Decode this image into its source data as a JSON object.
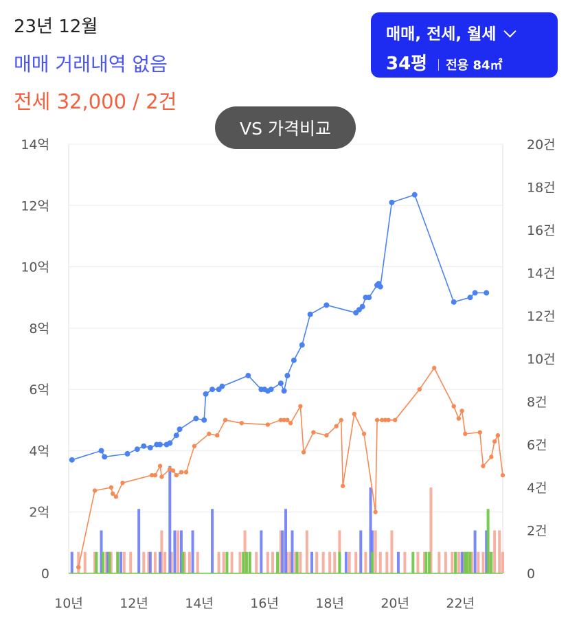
{
  "header": {
    "date": "23년 12월",
    "sale_status": "매매 거래내역 없음",
    "jeonse_summary": "전세 32,000 / 2건"
  },
  "filter": {
    "deal_types": "매매, 전세, 월세",
    "pyeong": "34평",
    "area": "전용 84㎡",
    "icon": "chevron-down-icon"
  },
  "compare_button": {
    "label": "VS 가격비교"
  },
  "chart_data": {
    "type": "line",
    "x_range": [
      2010,
      2023.3
    ],
    "x_ticks": [
      "10년",
      "12년",
      "14년",
      "16년",
      "18년",
      "20년",
      "22년"
    ],
    "y_left": {
      "range": [
        0,
        14
      ],
      "ticks": [
        "0",
        "2억",
        "4억",
        "6억",
        "8억",
        "10억",
        "12억",
        "14억"
      ]
    },
    "y_right": {
      "range": [
        0,
        20
      ],
      "ticks": [
        "0",
        "2건",
        "4건",
        "6건",
        "8건",
        "10건",
        "12건",
        "14건",
        "16건",
        "18건",
        "20건"
      ]
    },
    "grid": "horizontal",
    "colors": {
      "sale": "#4a82f0",
      "jeonse": "#f58a55",
      "sale_bar": "#6b7cf5",
      "jeonse_bar": "#f5a898",
      "monthly_bar": "#70c84a"
    },
    "series": [
      {
        "points": [
          [
            2010.1,
            3.7
          ],
          [
            2011.0,
            4.0
          ],
          [
            2011.1,
            3.8
          ],
          [
            2011.8,
            3.9
          ],
          [
            2012.1,
            4.05
          ],
          [
            2012.3,
            4.15
          ],
          [
            2012.5,
            4.1
          ],
          [
            2012.7,
            4.2
          ],
          [
            2012.8,
            4.2
          ],
          [
            2013.0,
            4.2
          ],
          [
            2013.1,
            4.25
          ],
          [
            2013.3,
            4.5
          ],
          [
            2013.4,
            4.7
          ],
          [
            2013.9,
            5.05
          ],
          [
            2014.15,
            5.0
          ],
          [
            2014.2,
            5.85
          ],
          [
            2014.4,
            6.0
          ],
          [
            2014.6,
            6.0
          ],
          [
            2014.7,
            6.1
          ],
          [
            2015.5,
            6.45
          ],
          [
            2015.9,
            6.0
          ],
          [
            2016.0,
            6.0
          ],
          [
            2016.1,
            5.95
          ],
          [
            2016.2,
            6.0
          ],
          [
            2016.5,
            6.2
          ],
          [
            2016.6,
            5.95
          ],
          [
            2016.7,
            6.45
          ],
          [
            2016.9,
            6.95
          ],
          [
            2017.15,
            7.45
          ],
          [
            2017.4,
            8.45
          ],
          [
            2017.9,
            8.75
          ],
          [
            2018.8,
            8.5
          ],
          [
            2018.9,
            8.6
          ],
          [
            2019.0,
            8.7
          ],
          [
            2019.1,
            9.0
          ],
          [
            2019.2,
            9.0
          ],
          [
            2019.45,
            9.4
          ],
          [
            2019.5,
            9.45
          ],
          [
            2019.55,
            9.35
          ],
          [
            2019.9,
            12.1
          ],
          [
            2020.6,
            12.35
          ],
          [
            2021.8,
            8.85
          ],
          [
            2022.3,
            9.0
          ],
          [
            2022.45,
            9.15
          ],
          [
            2022.8,
            9.15
          ]
        ]
      },
      {
        "points": [
          [
            2010.3,
            0.2
          ],
          [
            2010.8,
            2.7
          ],
          [
            2011.3,
            2.8
          ],
          [
            2011.35,
            2.6
          ],
          [
            2011.45,
            2.5
          ],
          [
            2011.65,
            2.95
          ],
          [
            2012.55,
            3.2
          ],
          [
            2012.65,
            3.2
          ],
          [
            2012.8,
            3.5
          ],
          [
            2012.85,
            3.15
          ],
          [
            2013.1,
            3.4
          ],
          [
            2013.2,
            3.35
          ],
          [
            2013.3,
            3.2
          ],
          [
            2013.45,
            3.3
          ],
          [
            2013.6,
            3.3
          ],
          [
            2013.85,
            4.15
          ],
          [
            2014.3,
            4.55
          ],
          [
            2014.55,
            4.5
          ],
          [
            2014.8,
            5.0
          ],
          [
            2015.3,
            4.9
          ],
          [
            2016.1,
            4.85
          ],
          [
            2016.5,
            5.0
          ],
          [
            2016.6,
            5.0
          ],
          [
            2016.7,
            5.0
          ],
          [
            2016.8,
            4.9
          ],
          [
            2017.1,
            5.45
          ],
          [
            2017.2,
            3.95
          ],
          [
            2017.5,
            4.6
          ],
          [
            2017.9,
            4.5
          ],
          [
            2018.2,
            4.8
          ],
          [
            2018.35,
            5.0
          ],
          [
            2018.4,
            2.85
          ],
          [
            2018.75,
            5.2
          ],
          [
            2019.05,
            4.55
          ],
          [
            2019.4,
            2.0
          ],
          [
            2019.45,
            5.0
          ],
          [
            2019.6,
            5.0
          ],
          [
            2019.7,
            5.0
          ],
          [
            2019.8,
            5.0
          ],
          [
            2020.0,
            5.0
          ],
          [
            2020.75,
            6.0
          ],
          [
            2021.2,
            6.7
          ],
          [
            2021.8,
            5.45
          ],
          [
            2021.95,
            5.05
          ],
          [
            2022.05,
            5.3
          ],
          [
            2022.15,
            4.55
          ],
          [
            2022.6,
            4.6
          ],
          [
            2022.7,
            3.5
          ],
          [
            2022.95,
            3.8
          ],
          [
            2023.05,
            4.3
          ],
          [
            2023.15,
            4.5
          ],
          [
            2023.3,
            3.2
          ]
        ]
      }
    ],
    "bars": {
      "sale": [
        [
          2010.1,
          1
        ],
        [
          2011.0,
          2
        ],
        [
          2011.2,
          1
        ],
        [
          2011.6,
          1
        ],
        [
          2012.15,
          3
        ],
        [
          2012.5,
          1
        ],
        [
          2012.8,
          1
        ],
        [
          2013.1,
          5
        ],
        [
          2013.25,
          2
        ],
        [
          2013.45,
          2
        ],
        [
          2013.8,
          2
        ],
        [
          2014.4,
          3
        ],
        [
          2015.9,
          2
        ],
        [
          2016.55,
          2
        ],
        [
          2016.65,
          3
        ],
        [
          2016.85,
          2
        ],
        [
          2017.45,
          1
        ],
        [
          2018.5,
          1
        ],
        [
          2018.95,
          2
        ],
        [
          2019.25,
          4
        ],
        [
          2019.3,
          2
        ],
        [
          2020.1,
          1
        ],
        [
          2022.05,
          1
        ],
        [
          2022.45,
          2
        ],
        [
          2022.8,
          2
        ]
      ],
      "jeonse": [
        [
          2010.3,
          1
        ],
        [
          2010.5,
          1
        ],
        [
          2010.8,
          1
        ],
        [
          2011.15,
          1
        ],
        [
          2011.3,
          1
        ],
        [
          2011.5,
          1
        ],
        [
          2011.7,
          1
        ],
        [
          2011.9,
          1
        ],
        [
          2012.3,
          1
        ],
        [
          2012.45,
          1
        ],
        [
          2012.65,
          1
        ],
        [
          2012.85,
          2
        ],
        [
          2012.95,
          1
        ],
        [
          2013.15,
          1
        ],
        [
          2013.35,
          2
        ],
        [
          2013.55,
          1
        ],
        [
          2013.7,
          1
        ],
        [
          2013.95,
          1
        ],
        [
          2014.6,
          1
        ],
        [
          2014.75,
          1
        ],
        [
          2015.0,
          1
        ],
        [
          2015.25,
          1
        ],
        [
          2015.4,
          2
        ],
        [
          2015.55,
          1
        ],
        [
          2015.75,
          1
        ],
        [
          2016.1,
          1
        ],
        [
          2016.25,
          1
        ],
        [
          2016.5,
          2
        ],
        [
          2016.7,
          1
        ],
        [
          2016.8,
          1
        ],
        [
          2016.95,
          1
        ],
        [
          2017.1,
          1
        ],
        [
          2017.3,
          2
        ],
        [
          2017.6,
          1
        ],
        [
          2017.8,
          1
        ],
        [
          2018.0,
          1
        ],
        [
          2018.15,
          1
        ],
        [
          2018.3,
          2
        ],
        [
          2018.6,
          1
        ],
        [
          2018.8,
          1
        ],
        [
          2019.1,
          1
        ],
        [
          2019.4,
          2
        ],
        [
          2019.55,
          1
        ],
        [
          2019.75,
          1
        ],
        [
          2019.9,
          2
        ],
        [
          2020.3,
          1
        ],
        [
          2020.7,
          1
        ],
        [
          2020.9,
          1
        ],
        [
          2021.1,
          4
        ],
        [
          2021.35,
          1
        ],
        [
          2021.55,
          1
        ],
        [
          2021.75,
          1
        ],
        [
          2021.95,
          1
        ],
        [
          2022.1,
          1
        ],
        [
          2022.25,
          1
        ],
        [
          2022.35,
          1
        ],
        [
          2022.55,
          1
        ],
        [
          2022.7,
          1
        ],
        [
          2022.9,
          1
        ],
        [
          2023.05,
          2
        ],
        [
          2023.2,
          2
        ],
        [
          2023.3,
          1
        ]
      ],
      "monthly": [
        [
          2010.85,
          1
        ],
        [
          2011.05,
          1
        ],
        [
          2011.25,
          1
        ],
        [
          2011.5,
          1
        ],
        [
          2013.5,
          1
        ],
        [
          2014.85,
          1
        ],
        [
          2015.35,
          1
        ],
        [
          2015.45,
          1
        ],
        [
          2015.55,
          1
        ],
        [
          2016.4,
          1
        ],
        [
          2017.0,
          1
        ],
        [
          2018.3,
          1
        ],
        [
          2019.3,
          1
        ],
        [
          2020.55,
          1
        ],
        [
          2020.95,
          1
        ],
        [
          2021.05,
          1
        ],
        [
          2021.85,
          1
        ],
        [
          2022.15,
          1
        ],
        [
          2022.2,
          1
        ],
        [
          2022.3,
          1
        ],
        [
          2022.85,
          3
        ],
        [
          2022.95,
          1
        ]
      ]
    }
  }
}
